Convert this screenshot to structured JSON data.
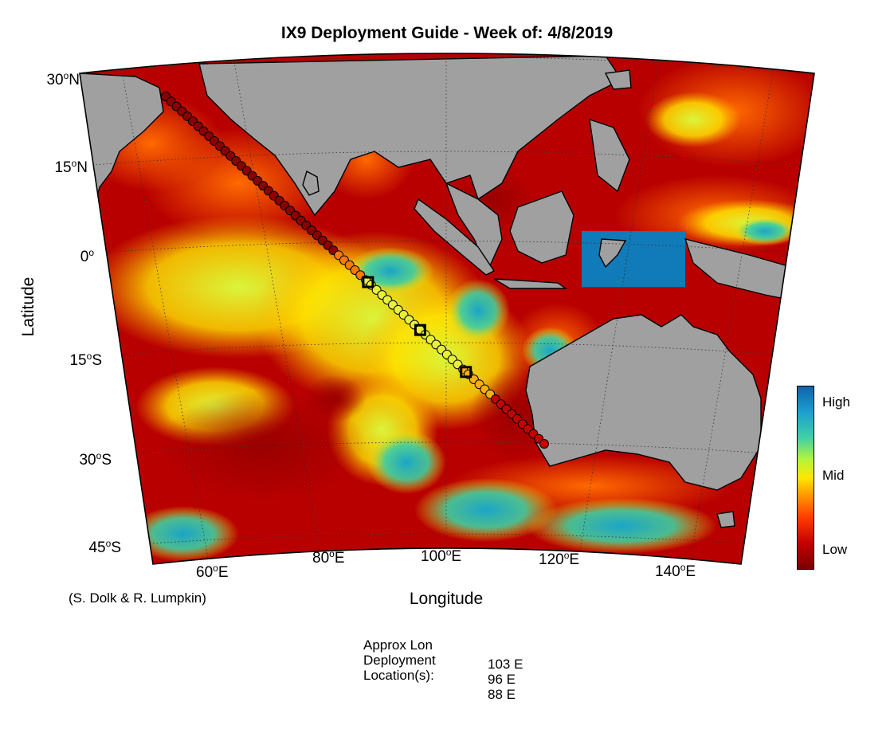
{
  "title": "IX9 Deployment Guide - Week of: 4/8/2019",
  "xlabel": "Longitude",
  "ylabel": "Latitude",
  "credit": "(S. Dolk & R. Lumpkin)",
  "lat_ticks": [
    {
      "deg": "30",
      "hemi": "N"
    },
    {
      "deg": "15",
      "hemi": "N"
    },
    {
      "deg": "0",
      "hemi": ""
    },
    {
      "deg": "15",
      "hemi": "S"
    },
    {
      "deg": "30",
      "hemi": "S"
    },
    {
      "deg": "45",
      "hemi": "S"
    }
  ],
  "lon_ticks": [
    {
      "deg": "60",
      "hemi": "E"
    },
    {
      "deg": "80",
      "hemi": "E"
    },
    {
      "deg": "100",
      "hemi": "E"
    },
    {
      "deg": "120",
      "hemi": "E"
    },
    {
      "deg": "140",
      "hemi": "E"
    }
  ],
  "colorbar": {
    "high": "High",
    "mid": "Mid",
    "low": "Low"
  },
  "map": {
    "lon_range": [
      50,
      150
    ],
    "lat_range": [
      -50,
      30
    ],
    "track_start": {
      "lon": 57,
      "lat": 27
    },
    "track_end": {
      "lon": 115,
      "lat": -30
    },
    "deployments": [
      {
        "lon": 88,
        "lat": -1
      },
      {
        "lon": 96,
        "lat": -8
      },
      {
        "lon": 103,
        "lat": -15
      }
    ],
    "colors": {
      "land": "#a0a0a0",
      "low": "#8b0000",
      "mid": "#ffe600",
      "high": "#0f6fb0",
      "track_marker": "#000000"
    }
  },
  "deployment_info": {
    "line1": "Approx Lon",
    "line2": "Deployment",
    "line3": "Location(s):",
    "values": [
      "103 E",
      "96 E",
      "88 E"
    ]
  }
}
